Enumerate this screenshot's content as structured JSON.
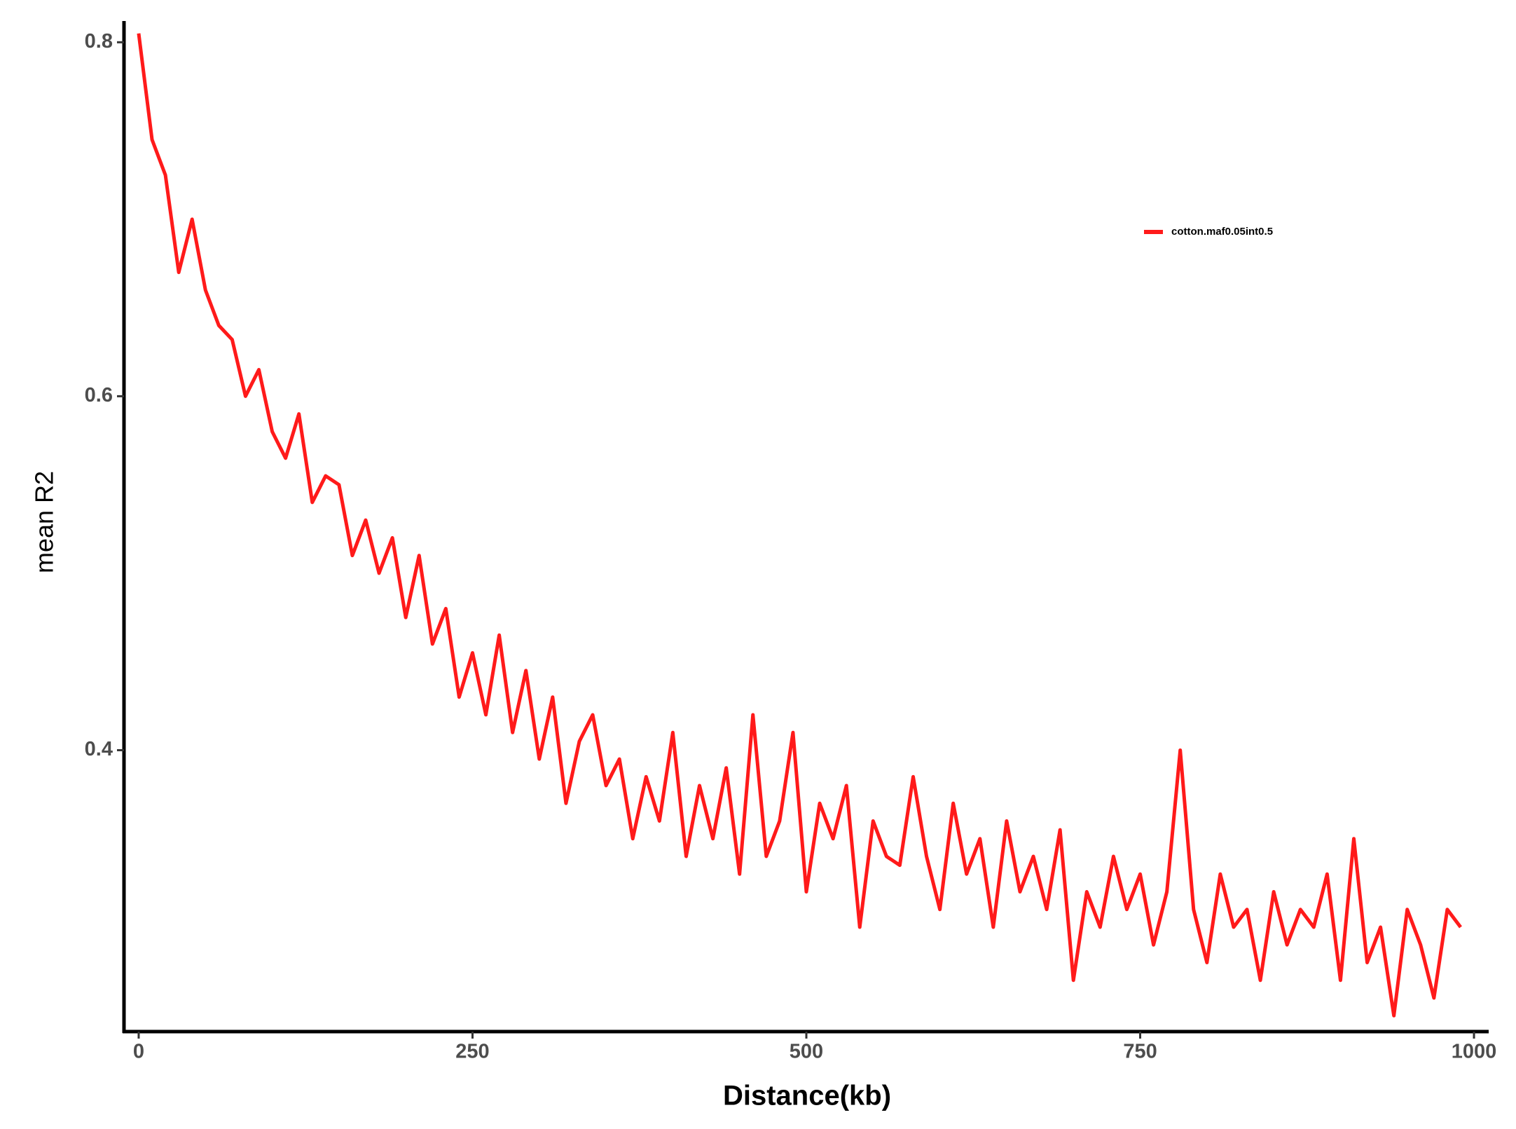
{
  "chart_data": {
    "type": "line",
    "x_label": "Distance(kb)",
    "y_label": "mean R2",
    "x": [
      0,
      10,
      20,
      30,
      40,
      50,
      60,
      70,
      80,
      90,
      100,
      110,
      120,
      130,
      140,
      150,
      160,
      170,
      180,
      190,
      200,
      210,
      220,
      230,
      240,
      250,
      260,
      270,
      280,
      290,
      300,
      310,
      320,
      330,
      340,
      350,
      360,
      370,
      380,
      390,
      400,
      410,
      420,
      430,
      440,
      450,
      460,
      470,
      480,
      490,
      500,
      510,
      520,
      530,
      540,
      550,
      560,
      570,
      580,
      590,
      600,
      610,
      620,
      630,
      640,
      650,
      660,
      670,
      680,
      690,
      700,
      710,
      720,
      730,
      740,
      750,
      760,
      770,
      780,
      790,
      800,
      810,
      820,
      830,
      840,
      850,
      860,
      870,
      880,
      890,
      900,
      910,
      920,
      930,
      940,
      950,
      960,
      970,
      980,
      990
    ],
    "series": [
      {
        "name": "cotton.maf0.05int0.5",
        "color": "#ff1a1a",
        "values": [
          0.805,
          0.745,
          0.725,
          0.67,
          0.7,
          0.66,
          0.64,
          0.632,
          0.6,
          0.615,
          0.58,
          0.565,
          0.59,
          0.54,
          0.555,
          0.55,
          0.51,
          0.53,
          0.5,
          0.52,
          0.475,
          0.51,
          0.46,
          0.48,
          0.43,
          0.455,
          0.42,
          0.465,
          0.41,
          0.445,
          0.395,
          0.43,
          0.37,
          0.405,
          0.42,
          0.38,
          0.395,
          0.35,
          0.385,
          0.36,
          0.41,
          0.34,
          0.38,
          0.35,
          0.39,
          0.33,
          0.42,
          0.34,
          0.36,
          0.41,
          0.32,
          0.37,
          0.35,
          0.38,
          0.3,
          0.36,
          0.34,
          0.335,
          0.385,
          0.34,
          0.31,
          0.37,
          0.33,
          0.35,
          0.3,
          0.36,
          0.32,
          0.34,
          0.31,
          0.355,
          0.27,
          0.32,
          0.3,
          0.34,
          0.31,
          0.33,
          0.29,
          0.32,
          0.4,
          0.31,
          0.28,
          0.33,
          0.3,
          0.31,
          0.27,
          0.32,
          0.29,
          0.31,
          0.3,
          0.33,
          0.27,
          0.35,
          0.28,
          0.3,
          0.25,
          0.31,
          0.29,
          0.26,
          0.31,
          0.3
        ]
      }
    ],
    "xlim": [
      -11,
      1011
    ],
    "xticks": [
      0,
      250,
      500,
      750,
      1000
    ],
    "ylim": [
      0.241,
      0.812
    ],
    "yticks": [
      0.4,
      0.6,
      0.8
    ],
    "grid": false
  }
}
